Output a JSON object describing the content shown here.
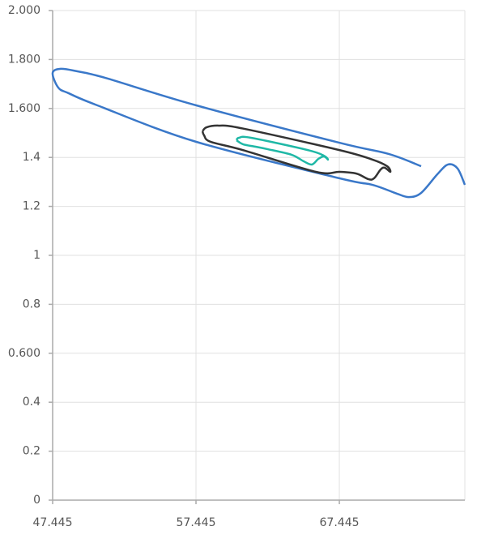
{
  "chart_data": {
    "type": "line",
    "xlim": [
      47.445,
      76.2
    ],
    "xticks": [
      47.445,
      57.445,
      67.445
    ],
    "ylim": [
      0,
      2
    ],
    "yticks": [
      0,
      0.2,
      0.4,
      {
        "value": 0.6,
        "label": "0.600"
      },
      0.8,
      1,
      1.2,
      1.4,
      {
        "value": 1.6,
        "label": "1.600"
      },
      {
        "value": 1.8,
        "label": "1.800"
      },
      {
        "value": 2,
        "label": "2.000"
      }
    ],
    "grid": true,
    "series": [
      {
        "color": "#3a78c9",
        "x": [
          73.15,
          70.89,
          67.445,
          57.445,
          51.12,
          49.14,
          48.01,
          47.445,
          47.84,
          48.57,
          50.55,
          57.445,
          67.445,
          69.76,
          71.46,
          72.3,
          73.15,
          74.28,
          75.02,
          75.69,
          76.2
        ],
        "values": [
          1.364,
          1.414,
          1.46,
          1.613,
          1.725,
          1.752,
          1.762,
          1.745,
          1.685,
          1.662,
          1.613,
          1.464,
          1.315,
          1.288,
          1.252,
          1.238,
          1.255,
          1.331,
          1.371,
          1.355,
          1.288
        ]
      },
      {
        "color": "#333333",
        "x": [
          57.9,
          58.18,
          59.03,
          60.72,
          67.445,
          69.76,
          70.78,
          71.0,
          70.61,
          70.33,
          69.87,
          69.48,
          68.63,
          67.445,
          65.81,
          60.72,
          58.46,
          58.01,
          57.9
        ],
        "values": [
          1.507,
          1.523,
          1.53,
          1.518,
          1.43,
          1.391,
          1.364,
          1.341,
          1.358,
          1.351,
          1.315,
          1.311,
          1.334,
          1.341,
          1.341,
          1.43,
          1.464,
          1.49,
          1.507
        ]
      },
      {
        "color": "#1fb8a6",
        "x": [
          60.27,
          60.44,
          61.29,
          65.24,
          66.37,
          66.65,
          66.37,
          65.98,
          65.53,
          64.96,
          64.11,
          62.42,
          61.57,
          60.72,
          60.27
        ],
        "values": [
          1.47,
          1.48,
          1.48,
          1.43,
          1.407,
          1.391,
          1.404,
          1.394,
          1.371,
          1.384,
          1.411,
          1.434,
          1.444,
          1.454,
          1.47
        ]
      }
    ]
  }
}
